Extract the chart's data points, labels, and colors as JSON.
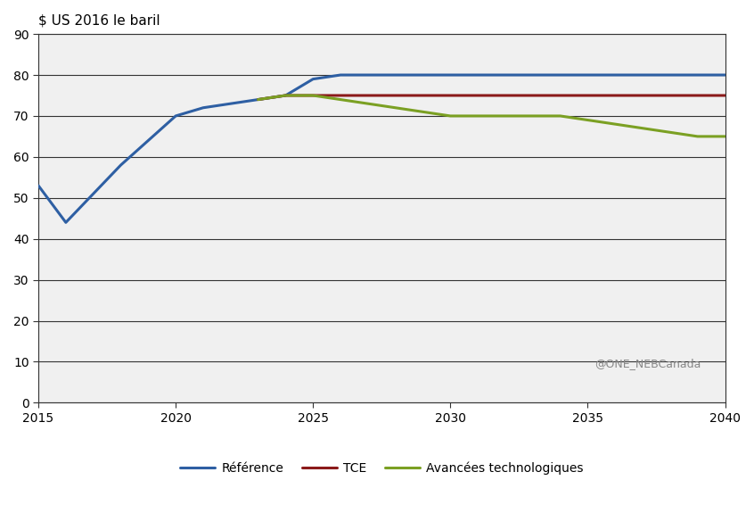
{
  "title": "$ US 2016 le baril",
  "xlim": [
    2015,
    2040
  ],
  "ylim": [
    0,
    90
  ],
  "yticks": [
    0,
    10,
    20,
    30,
    40,
    50,
    60,
    70,
    80,
    90
  ],
  "xticks": [
    2015,
    2020,
    2025,
    2030,
    2035,
    2040
  ],
  "watermark": "@ONE_NEBCanada",
  "series": {
    "Reference": {
      "label": "Référence",
      "color": "#2E5FA3",
      "linewidth": 2.2,
      "x": [
        2015,
        2016,
        2017,
        2018,
        2019,
        2020,
        2021,
        2022,
        2023,
        2024,
        2025,
        2026,
        2027,
        2028,
        2029,
        2030,
        2031,
        2032,
        2033,
        2034,
        2035,
        2036,
        2037,
        2038,
        2039,
        2040
      ],
      "y": [
        53,
        44,
        51,
        58,
        64,
        70,
        72,
        73,
        74,
        75,
        79,
        80,
        80,
        80,
        80,
        80,
        80,
        80,
        80,
        80,
        80,
        80,
        80,
        80,
        80,
        80
      ]
    },
    "TCE": {
      "label": "TCE",
      "color": "#8B1A1A",
      "linewidth": 2.2,
      "x": [
        2023,
        2024,
        2025,
        2026,
        2027,
        2028,
        2029,
        2030,
        2031,
        2032,
        2033,
        2034,
        2035,
        2036,
        2037,
        2038,
        2039,
        2040
      ],
      "y": [
        74,
        75,
        75,
        75,
        75,
        75,
        75,
        75,
        75,
        75,
        75,
        75,
        75,
        75,
        75,
        75,
        75,
        75
      ]
    },
    "Avancees": {
      "label": "Avancées technologiques",
      "color": "#7BA023",
      "linewidth": 2.2,
      "x": [
        2023,
        2024,
        2025,
        2026,
        2027,
        2028,
        2029,
        2030,
        2031,
        2032,
        2033,
        2034,
        2035,
        2036,
        2037,
        2038,
        2039,
        2040
      ],
      "y": [
        74,
        75,
        75,
        74,
        73,
        72,
        71,
        70,
        70,
        70,
        70,
        70,
        69,
        68,
        67,
        66,
        65,
        65
      ]
    }
  },
  "background_color": "#ffffff",
  "plot_bg_color": "#f0f0f0",
  "grid_color": "#333333",
  "spine_color": "#333333",
  "title_fontsize": 11,
  "tick_fontsize": 10,
  "legend_fontsize": 10,
  "watermark_color": "#888888"
}
